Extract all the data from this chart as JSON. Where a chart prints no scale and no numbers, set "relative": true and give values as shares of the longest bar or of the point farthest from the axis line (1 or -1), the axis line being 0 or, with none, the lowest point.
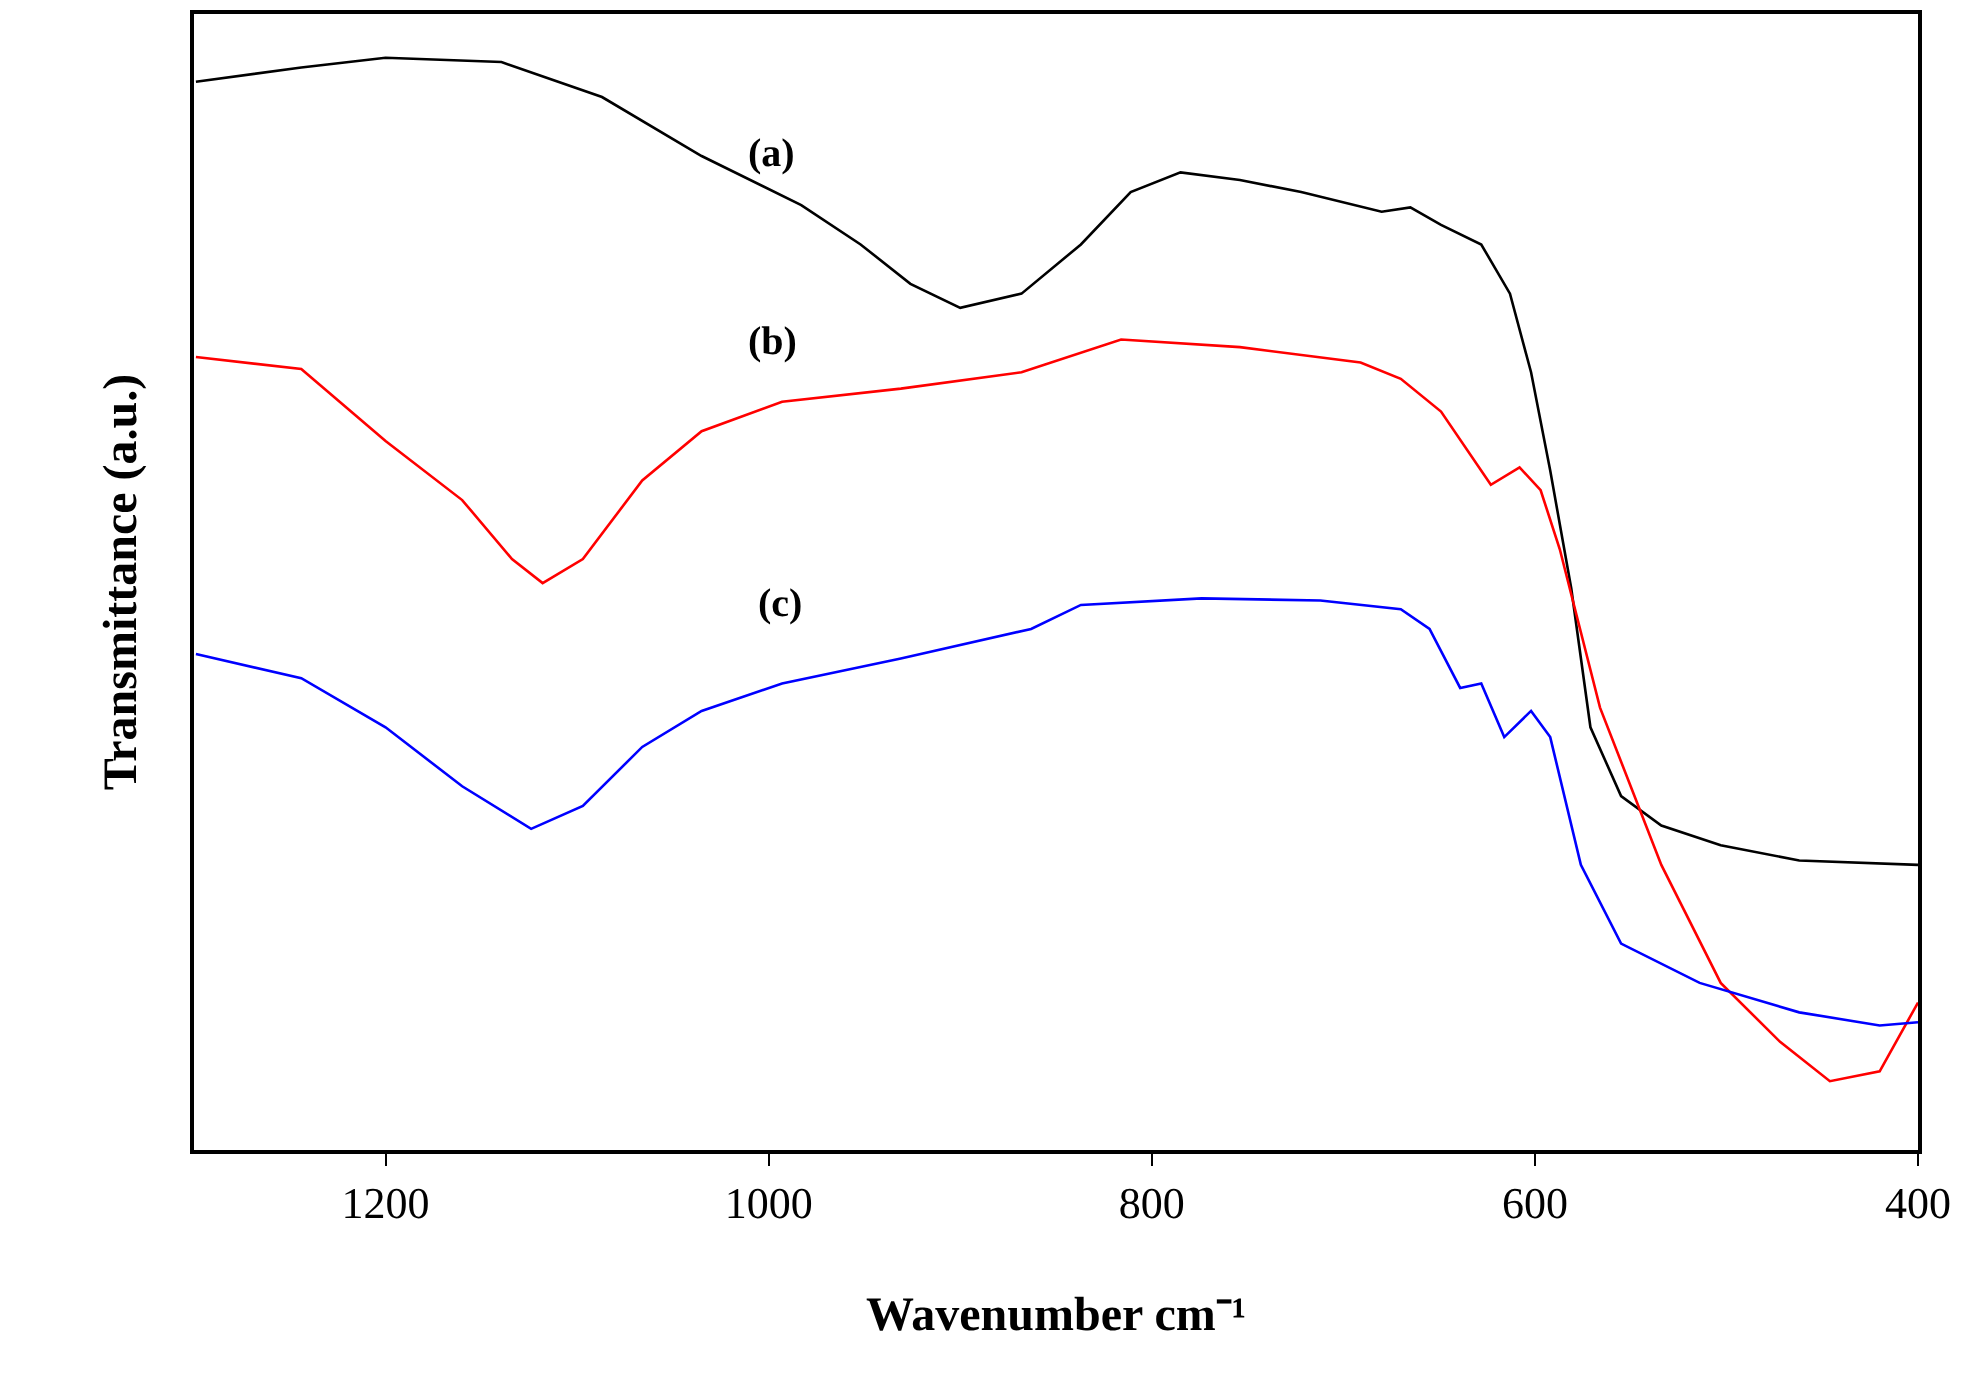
{
  "chart_data": {
    "type": "line",
    "relative": true,
    "xlabel": "Wavenumber cm⁻¹",
    "ylabel": "Transmittance (a.u.)",
    "xlim": [
      1300,
      400
    ],
    "xticks": [
      1200,
      1000,
      800,
      600,
      400
    ],
    "marker": "none",
    "line_style": "solid",
    "tick_labels": "x",
    "series": [
      {
        "color": "#000000",
        "x": [
          1299,
          1244,
          1200,
          1139.5,
          1087,
          1035,
          983,
          952,
          926,
          900,
          868,
          837,
          811,
          785,
          754,
          722,
          680,
          665,
          649,
          628,
          613,
          602,
          592,
          581,
          571,
          555,
          534,
          503,
          462,
          400
        ],
        "values": [
          0.978,
          0.991,
          1.0,
          0.996,
          0.964,
          0.91,
          0.865,
          0.829,
          0.793,
          0.771,
          0.784,
          0.829,
          0.877,
          0.895,
          0.888,
          0.877,
          0.859,
          0.863,
          0.847,
          0.829,
          0.784,
          0.712,
          0.622,
          0.514,
          0.387,
          0.324,
          0.297,
          0.279,
          0.265,
          0.261
        ]
      },
      {
        "color": "#ff0000",
        "x": [
          1299,
          1244,
          1200,
          1160,
          1134,
          1118,
          1097,
          1066,
          1035,
          993,
          931,
          868,
          816,
          754,
          691,
          670,
          649,
          623,
          608,
          597,
          587,
          566,
          534,
          503,
          472,
          446,
          420,
          400
        ],
        "values": [
          0.726,
          0.715,
          0.649,
          0.595,
          0.541,
          0.519,
          0.541,
          0.613,
          0.658,
          0.685,
          0.697,
          0.712,
          0.742,
          0.735,
          0.721,
          0.706,
          0.676,
          0.609,
          0.625,
          0.604,
          0.55,
          0.405,
          0.261,
          0.153,
          0.099,
          0.063,
          0.072,
          0.135
        ]
      },
      {
        "color": "#0000ff",
        "x": [
          1299,
          1244,
          1200,
          1160,
          1124,
          1097,
          1066,
          1035,
          993,
          931,
          863,
          837,
          774,
          712,
          670,
          655,
          639,
          628,
          616,
          602,
          592,
          576,
          555,
          514,
          462,
          420,
          400
        ],
        "values": [
          0.454,
          0.432,
          0.387,
          0.333,
          0.294,
          0.315,
          0.369,
          0.402,
          0.427,
          0.45,
          0.477,
          0.499,
          0.505,
          0.503,
          0.495,
          0.477,
          0.423,
          0.427,
          0.378,
          0.402,
          0.378,
          0.261,
          0.189,
          0.153,
          0.126,
          0.114,
          0.117
        ]
      }
    ],
    "annotations": [
      "(a)",
      "(b)",
      "(c)"
    ]
  }
}
